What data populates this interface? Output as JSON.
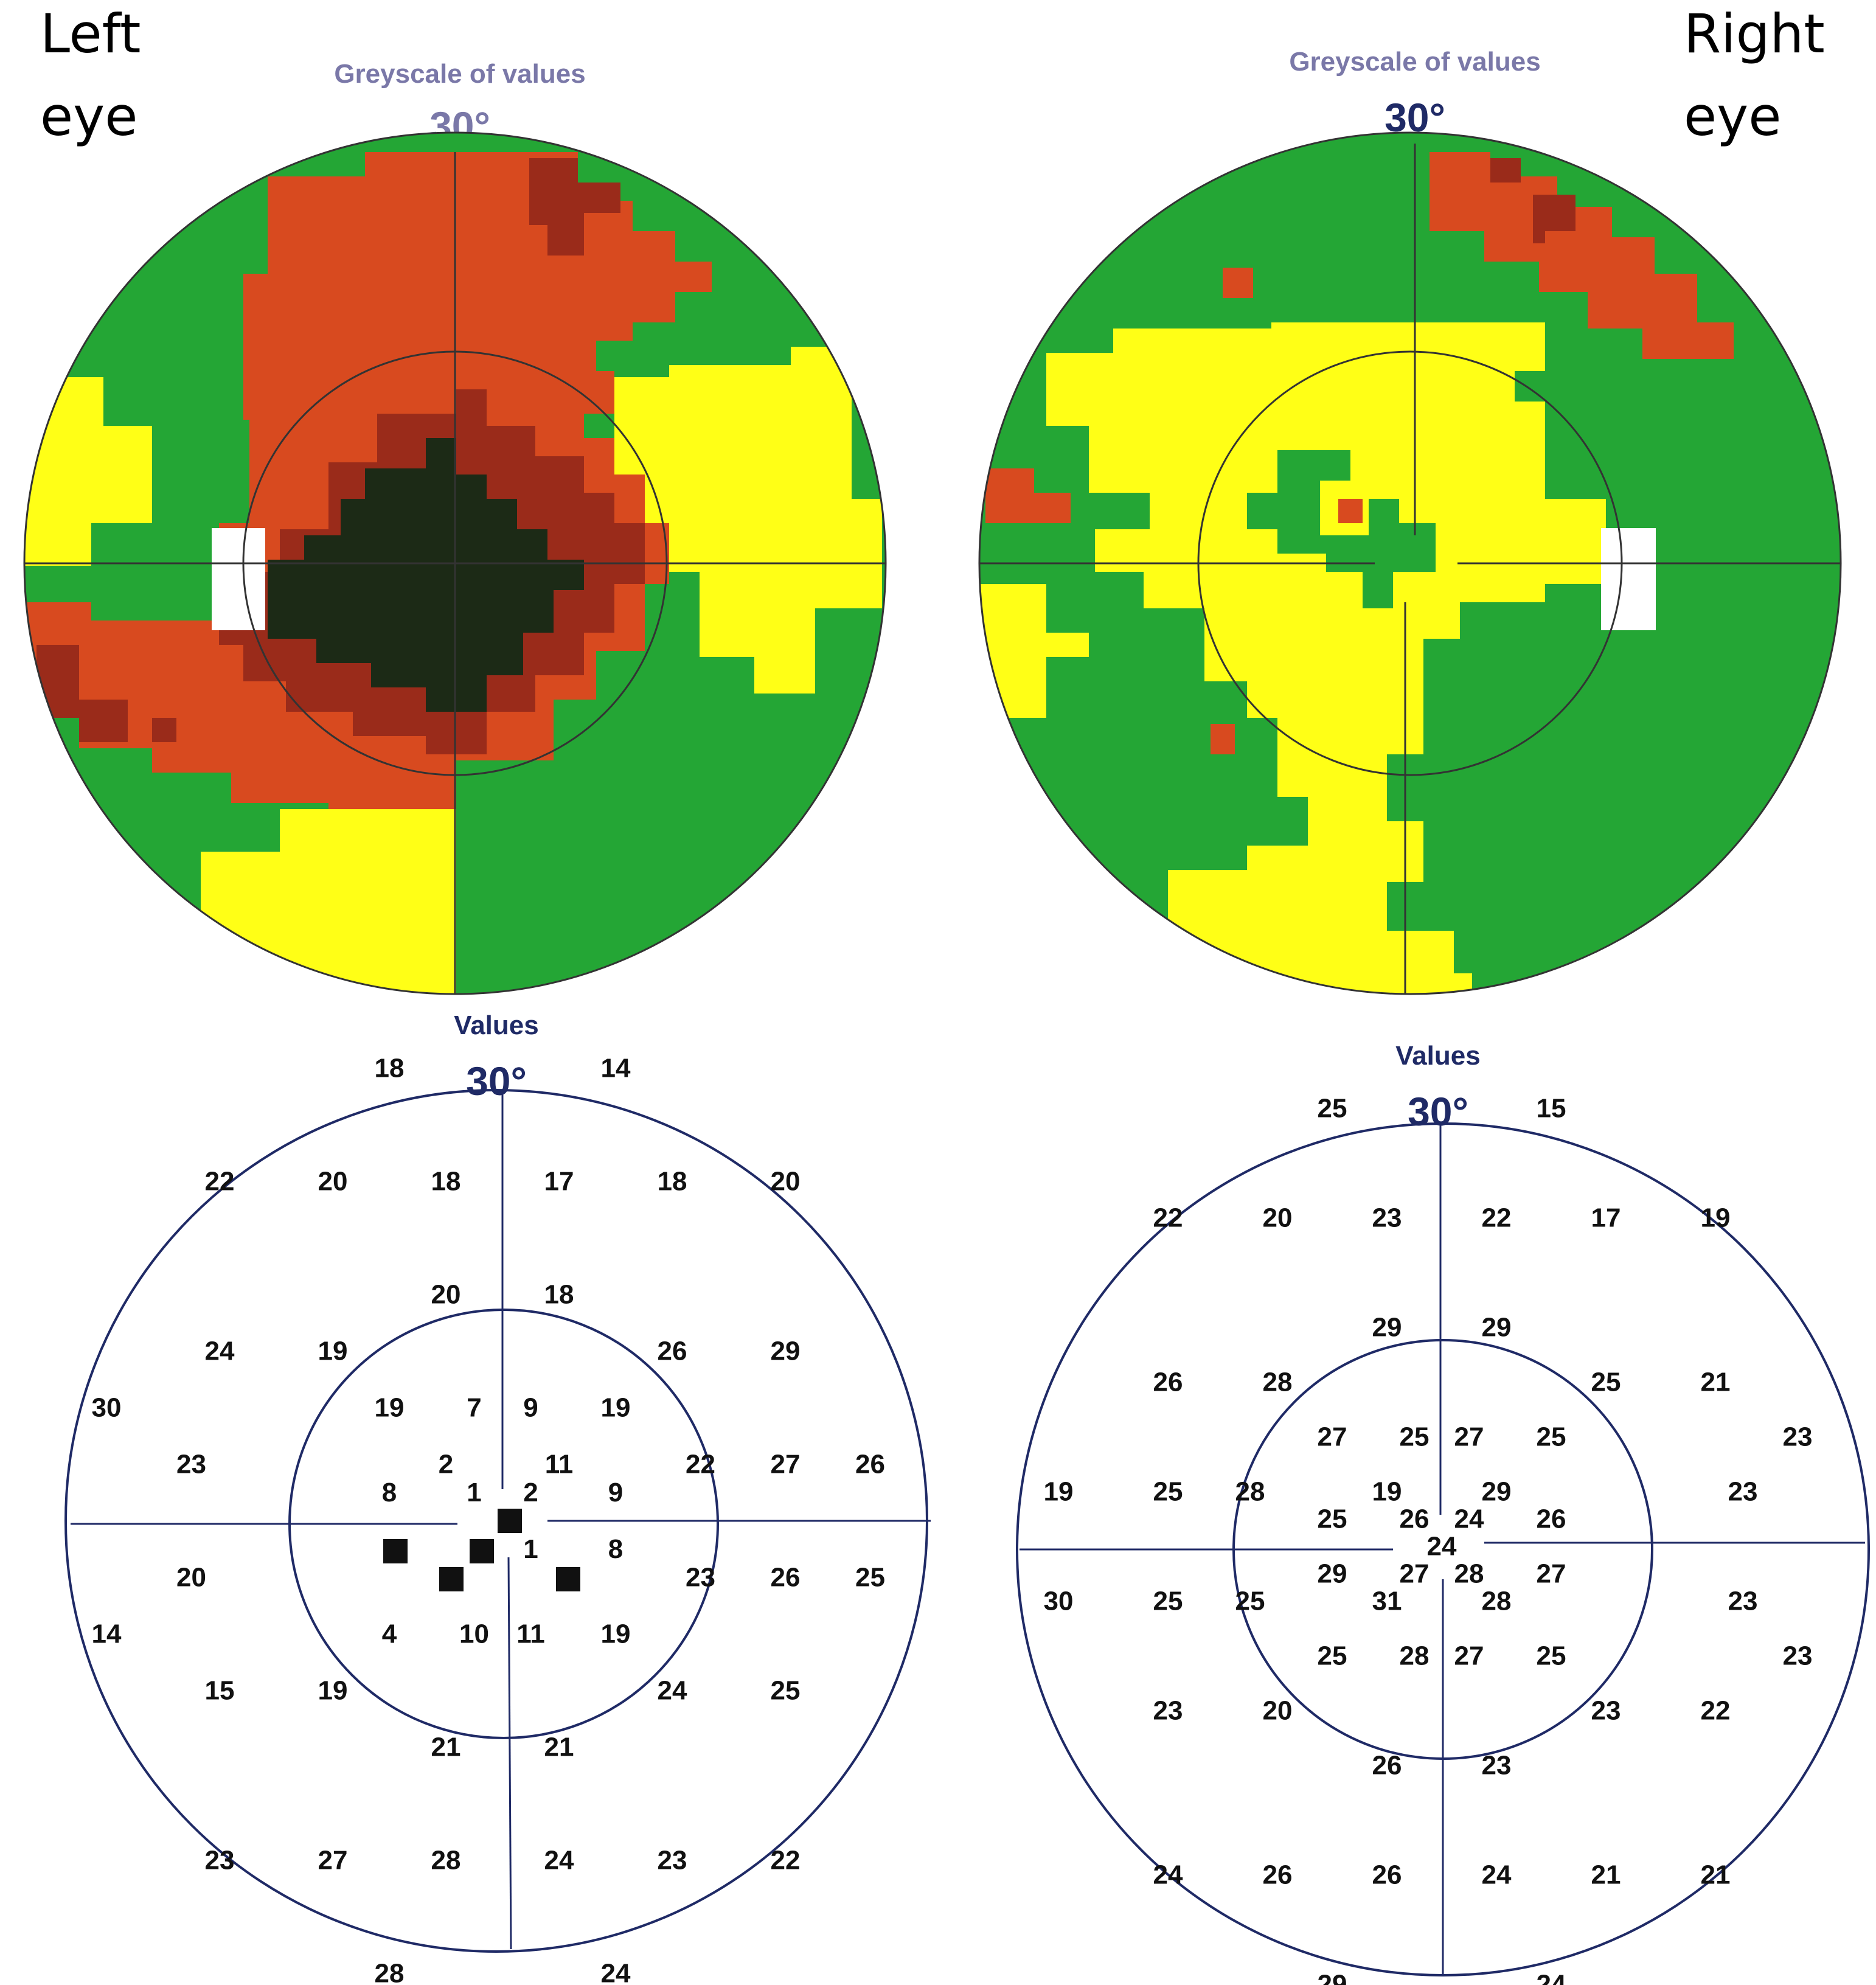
{
  "labels": {
    "left_eye": [
      "Left",
      "eye"
    ],
    "right_eye": [
      "Right",
      "eye"
    ]
  },
  "panels": {
    "left_grey": {
      "title": "Greyscale of values",
      "degree": "30°"
    },
    "right_grey": {
      "title": "Greyscale of values",
      "degree": "30°"
    },
    "left_values": {
      "title": "Values",
      "degree": "30°"
    },
    "right_values": {
      "title": "Values",
      "degree": "30°"
    }
  },
  "colors": {
    "dark": "#1c2a16",
    "deep_red": "#9a2b1a",
    "red": "#d84a1f",
    "green": "#24a635",
    "yellow": "#ffff16",
    "white": "#ffffff"
  },
  "left_values": [
    {
      "v": "18",
      "c": -2,
      "r": -4
    },
    {
      "v": "14",
      "c": 2,
      "r": -4
    },
    {
      "v": "22",
      "c": -5,
      "r": -3
    },
    {
      "v": "20",
      "c": -3,
      "r": -3
    },
    {
      "v": "18",
      "c": -1,
      "r": -3
    },
    {
      "v": "17",
      "c": 1,
      "r": -3
    },
    {
      "v": "18",
      "c": 3,
      "r": -3
    },
    {
      "v": "20",
      "c": 5,
      "r": -3
    },
    {
      "v": "20",
      "c": -1,
      "r": -2
    },
    {
      "v": "18",
      "c": 1,
      "r": -2
    },
    {
      "v": "24",
      "c": -5,
      "r": -1.5
    },
    {
      "v": "19",
      "c": -3,
      "r": -1.5
    },
    {
      "v": "26",
      "c": 3,
      "r": -1.5
    },
    {
      "v": "29",
      "c": 5,
      "r": -1.5
    },
    {
      "v": "30",
      "c": -7,
      "r": -1
    },
    {
      "v": "19",
      "c": -2,
      "r": -1
    },
    {
      "v": "7",
      "c": -0.5,
      "r": -1
    },
    {
      "v": "9",
      "c": 0.5,
      "r": -1
    },
    {
      "v": "19",
      "c": 2,
      "r": -1
    },
    {
      "v": "23",
      "c": -5.5,
      "r": -0.5
    },
    {
      "v": "2",
      "c": -1,
      "r": -0.5
    },
    {
      "v": "11",
      "c": 1,
      "r": -0.5
    },
    {
      "v": "22",
      "c": 3.5,
      "r": -0.5
    },
    {
      "v": "27",
      "c": 5,
      "r": -0.5
    },
    {
      "v": "26",
      "c": 6.5,
      "r": -0.5
    },
    {
      "v": "8",
      "c": -2,
      "r": -0.25
    },
    {
      "v": "1",
      "c": -0.5,
      "r": -0.25
    },
    {
      "v": "2",
      "c": 0.5,
      "r": -0.25
    },
    {
      "v": "9",
      "c": 2,
      "r": -0.25
    },
    {
      "v": "1",
      "c": 0.5,
      "r": 0.25
    },
    {
      "v": "8",
      "c": 2,
      "r": 0.25
    },
    {
      "v": "20",
      "c": -5.5,
      "r": 0.5
    },
    {
      "v": "23",
      "c": 3.5,
      "r": 0.5
    },
    {
      "v": "26",
      "c": 5,
      "r": 0.5
    },
    {
      "v": "25",
      "c": 6.5,
      "r": 0.5
    },
    {
      "v": "14",
      "c": -7,
      "r": 1
    },
    {
      "v": "4",
      "c": -2,
      "r": 1
    },
    {
      "v": "10",
      "c": -0.5,
      "r": 1
    },
    {
      "v": "11",
      "c": 0.5,
      "r": 1
    },
    {
      "v": "19",
      "c": 2,
      "r": 1
    },
    {
      "v": "15",
      "c": -5,
      "r": 1.5
    },
    {
      "v": "19",
      "c": -3,
      "r": 1.5
    },
    {
      "v": "24",
      "c": 3,
      "r": 1.5
    },
    {
      "v": "25",
      "c": 5,
      "r": 1.5
    },
    {
      "v": "21",
      "c": -1,
      "r": 2
    },
    {
      "v": "21",
      "c": 1,
      "r": 2
    },
    {
      "v": "23",
      "c": -5,
      "r": 3
    },
    {
      "v": "27",
      "c": -3,
      "r": 3
    },
    {
      "v": "28",
      "c": -1,
      "r": 3
    },
    {
      "v": "24",
      "c": 1,
      "r": 3
    },
    {
      "v": "23",
      "c": 3,
      "r": 3
    },
    {
      "v": "22",
      "c": 5,
      "r": 3
    },
    {
      "v": "28",
      "c": -2,
      "r": 4
    },
    {
      "v": "24",
      "c": 2,
      "r": 4
    }
  ],
  "right_values": [
    {
      "v": "25",
      "c": -2,
      "r": -4
    },
    {
      "v": "15",
      "c": 2,
      "r": -4
    },
    {
      "v": "22",
      "c": -5,
      "r": -3
    },
    {
      "v": "20",
      "c": -3,
      "r": -3
    },
    {
      "v": "23",
      "c": -1,
      "r": -3
    },
    {
      "v": "22",
      "c": 1,
      "r": -3
    },
    {
      "v": "17",
      "c": 3,
      "r": -3
    },
    {
      "v": "19",
      "c": 5,
      "r": -3
    },
    {
      "v": "29",
      "c": -1,
      "r": -2
    },
    {
      "v": "29",
      "c": 1,
      "r": -2
    },
    {
      "v": "26",
      "c": -5,
      "r": -1.5
    },
    {
      "v": "28",
      "c": -3,
      "r": -1.5
    },
    {
      "v": "25",
      "c": 3,
      "r": -1.5
    },
    {
      "v": "21",
      "c": 5,
      "r": -1.5
    },
    {
      "v": "27",
      "c": -2,
      "r": -1
    },
    {
      "v": "25",
      "c": -0.5,
      "r": -1
    },
    {
      "v": "27",
      "c": 0.5,
      "r": -1
    },
    {
      "v": "25",
      "c": 2,
      "r": -1
    },
    {
      "v": "23",
      "c": 6.5,
      "r": -1
    },
    {
      "v": "19",
      "c": -7,
      "r": -0.5
    },
    {
      "v": "25",
      "c": -5,
      "r": -0.5
    },
    {
      "v": "28",
      "c": -3.5,
      "r": -0.5
    },
    {
      "v": "19",
      "c": -1,
      "r": -0.5
    },
    {
      "v": "29",
      "c": 1,
      "r": -0.5
    },
    {
      "v": "23",
      "c": 5.5,
      "r": -0.5
    },
    {
      "v": "25",
      "c": -2,
      "r": -0.25
    },
    {
      "v": "26",
      "c": -0.5,
      "r": -0.25
    },
    {
      "v": "24",
      "c": 0.5,
      "r": -0.25
    },
    {
      "v": "26",
      "c": 2,
      "r": -0.25
    },
    {
      "v": "24",
      "c": 0,
      "r": 0
    },
    {
      "v": "29",
      "c": -2,
      "r": 0.25
    },
    {
      "v": "27",
      "c": -0.5,
      "r": 0.25
    },
    {
      "v": "28",
      "c": 0.5,
      "r": 0.25
    },
    {
      "v": "27",
      "c": 2,
      "r": 0.25
    },
    {
      "v": "30",
      "c": -7,
      "r": 0.5
    },
    {
      "v": "25",
      "c": -5,
      "r": 0.5
    },
    {
      "v": "25",
      "c": -3.5,
      "r": 0.5
    },
    {
      "v": "31",
      "c": -1,
      "r": 0.5
    },
    {
      "v": "28",
      "c": 1,
      "r": 0.5
    },
    {
      "v": "23",
      "c": 5.5,
      "r": 0.5
    },
    {
      "v": "25",
      "c": -2,
      "r": 1
    },
    {
      "v": "28",
      "c": -0.5,
      "r": 1
    },
    {
      "v": "27",
      "c": 0.5,
      "r": 1
    },
    {
      "v": "25",
      "c": 2,
      "r": 1
    },
    {
      "v": "23",
      "c": 6.5,
      "r": 1
    },
    {
      "v": "23",
      "c": -5,
      "r": 1.5
    },
    {
      "v": "20",
      "c": -3,
      "r": 1.5
    },
    {
      "v": "23",
      "c": 3,
      "r": 1.5
    },
    {
      "v": "22",
      "c": 5,
      "r": 1.5
    },
    {
      "v": "26",
      "c": -1,
      "r": 2
    },
    {
      "v": "23",
      "c": 1,
      "r": 2
    },
    {
      "v": "24",
      "c": -5,
      "r": 3
    },
    {
      "v": "26",
      "c": -3,
      "r": 3
    },
    {
      "v": "26",
      "c": -1,
      "r": 3
    },
    {
      "v": "24",
      "c": 1,
      "r": 3
    },
    {
      "v": "21",
      "c": 3,
      "r": 3
    },
    {
      "v": "21",
      "c": 5,
      "r": 3
    },
    {
      "v": "29",
      "c": -2,
      "r": 4
    },
    {
      "v": "24",
      "c": 2,
      "r": 4
    }
  ]
}
